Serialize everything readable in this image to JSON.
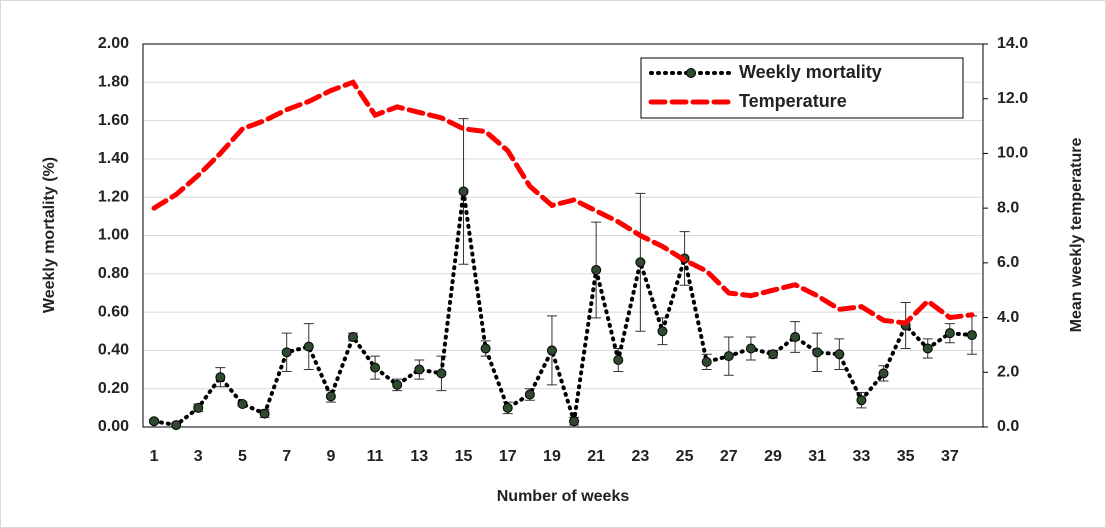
{
  "chart_data": {
    "type": "line",
    "xlabel": "Number of weeks",
    "ylabel": "Weekly mortality (%)",
    "y2label": "Mean weekly temperature",
    "x": [
      1,
      2,
      3,
      4,
      5,
      6,
      7,
      8,
      9,
      10,
      11,
      12,
      13,
      14,
      15,
      16,
      17,
      18,
      19,
      20,
      21,
      22,
      23,
      24,
      25,
      26,
      27,
      28,
      29,
      30,
      31,
      32,
      33,
      34,
      35,
      36,
      37,
      38
    ],
    "xlim": [
      0.5,
      38.5
    ],
    "xticks": [
      1,
      3,
      5,
      7,
      9,
      11,
      13,
      15,
      17,
      19,
      21,
      23,
      25,
      27,
      29,
      31,
      33,
      35,
      37
    ],
    "ylim": [
      0,
      2
    ],
    "yticks": [
      {
        "value": 0,
        "label": "0.00"
      },
      {
        "value": 0.2,
        "label": "0.20"
      },
      {
        "value": 0.4,
        "label": "0.40"
      },
      {
        "value": 0.6,
        "label": "0.60"
      },
      {
        "value": 0.8,
        "label": "0.80"
      },
      {
        "value": 1,
        "label": "1.00"
      },
      {
        "value": 1.2,
        "label": "1.20"
      },
      {
        "value": 1.4,
        "label": "1.40"
      },
      {
        "value": 1.6,
        "label": "1.60"
      },
      {
        "value": 1.8,
        "label": "1.80"
      },
      {
        "value": 2,
        "label": "2.00"
      }
    ],
    "y2lim": [
      0,
      14
    ],
    "y2ticks": [
      {
        "value": 0,
        "label": "0.0"
      },
      {
        "value": 2,
        "label": "2.0"
      },
      {
        "value": 4,
        "label": "4.0"
      },
      {
        "value": 6,
        "label": "6.0"
      },
      {
        "value": 8,
        "label": "8.0"
      },
      {
        "value": 10,
        "label": "10.0"
      },
      {
        "value": 12,
        "label": "12.0"
      },
      {
        "value": 14,
        "label": "14.0"
      }
    ],
    "grid": true,
    "legend": "upper right",
    "series": [
      {
        "name": "Weekly mortality",
        "color": "#000000",
        "marker_color": "#2f4a2f",
        "line_style": "dotted",
        "values": [
          0.03,
          0.01,
          0.1,
          0.26,
          0.12,
          0.07,
          0.39,
          0.42,
          0.16,
          0.47,
          0.31,
          0.22,
          0.3,
          0.28,
          1.23,
          0.41,
          0.1,
          0.17,
          0.4,
          0.03,
          0.82,
          0.35,
          0.86,
          0.5,
          0.88,
          0.34,
          0.37,
          0.41,
          0.38,
          0.47,
          0.39,
          0.38,
          0.14,
          0.28,
          0.53,
          0.41,
          0.49,
          0.48
        ],
        "errors": [
          0.01,
          0.01,
          0.02,
          0.05,
          0.01,
          0.02,
          0.1,
          0.12,
          0.03,
          0.02,
          0.06,
          0.03,
          0.05,
          0.09,
          0.38,
          0.04,
          0.03,
          0.03,
          0.18,
          0.02,
          0.25,
          0.06,
          0.36,
          0.07,
          0.14,
          0.04,
          0.1,
          0.06,
          0.02,
          0.08,
          0.1,
          0.08,
          0.04,
          0.04,
          0.12,
          0.05,
          0.05,
          0.1
        ]
      },
      {
        "name": "Temperature",
        "color": "#ff0000",
        "line_style": "dashed",
        "axis": "y2",
        "values": [
          8.0,
          8.5,
          9.2,
          10.0,
          10.9,
          11.2,
          11.6,
          11.9,
          12.3,
          12.6,
          11.4,
          11.7,
          11.5,
          11.3,
          10.9,
          10.8,
          10.1,
          8.8,
          8.1,
          8.3,
          7.9,
          7.5,
          7.0,
          6.6,
          6.1,
          5.7,
          4.9,
          4.8,
          5.0,
          5.2,
          4.8,
          4.3,
          4.4,
          3.9,
          3.8,
          4.6,
          4.0,
          4.1
        ]
      }
    ]
  }
}
